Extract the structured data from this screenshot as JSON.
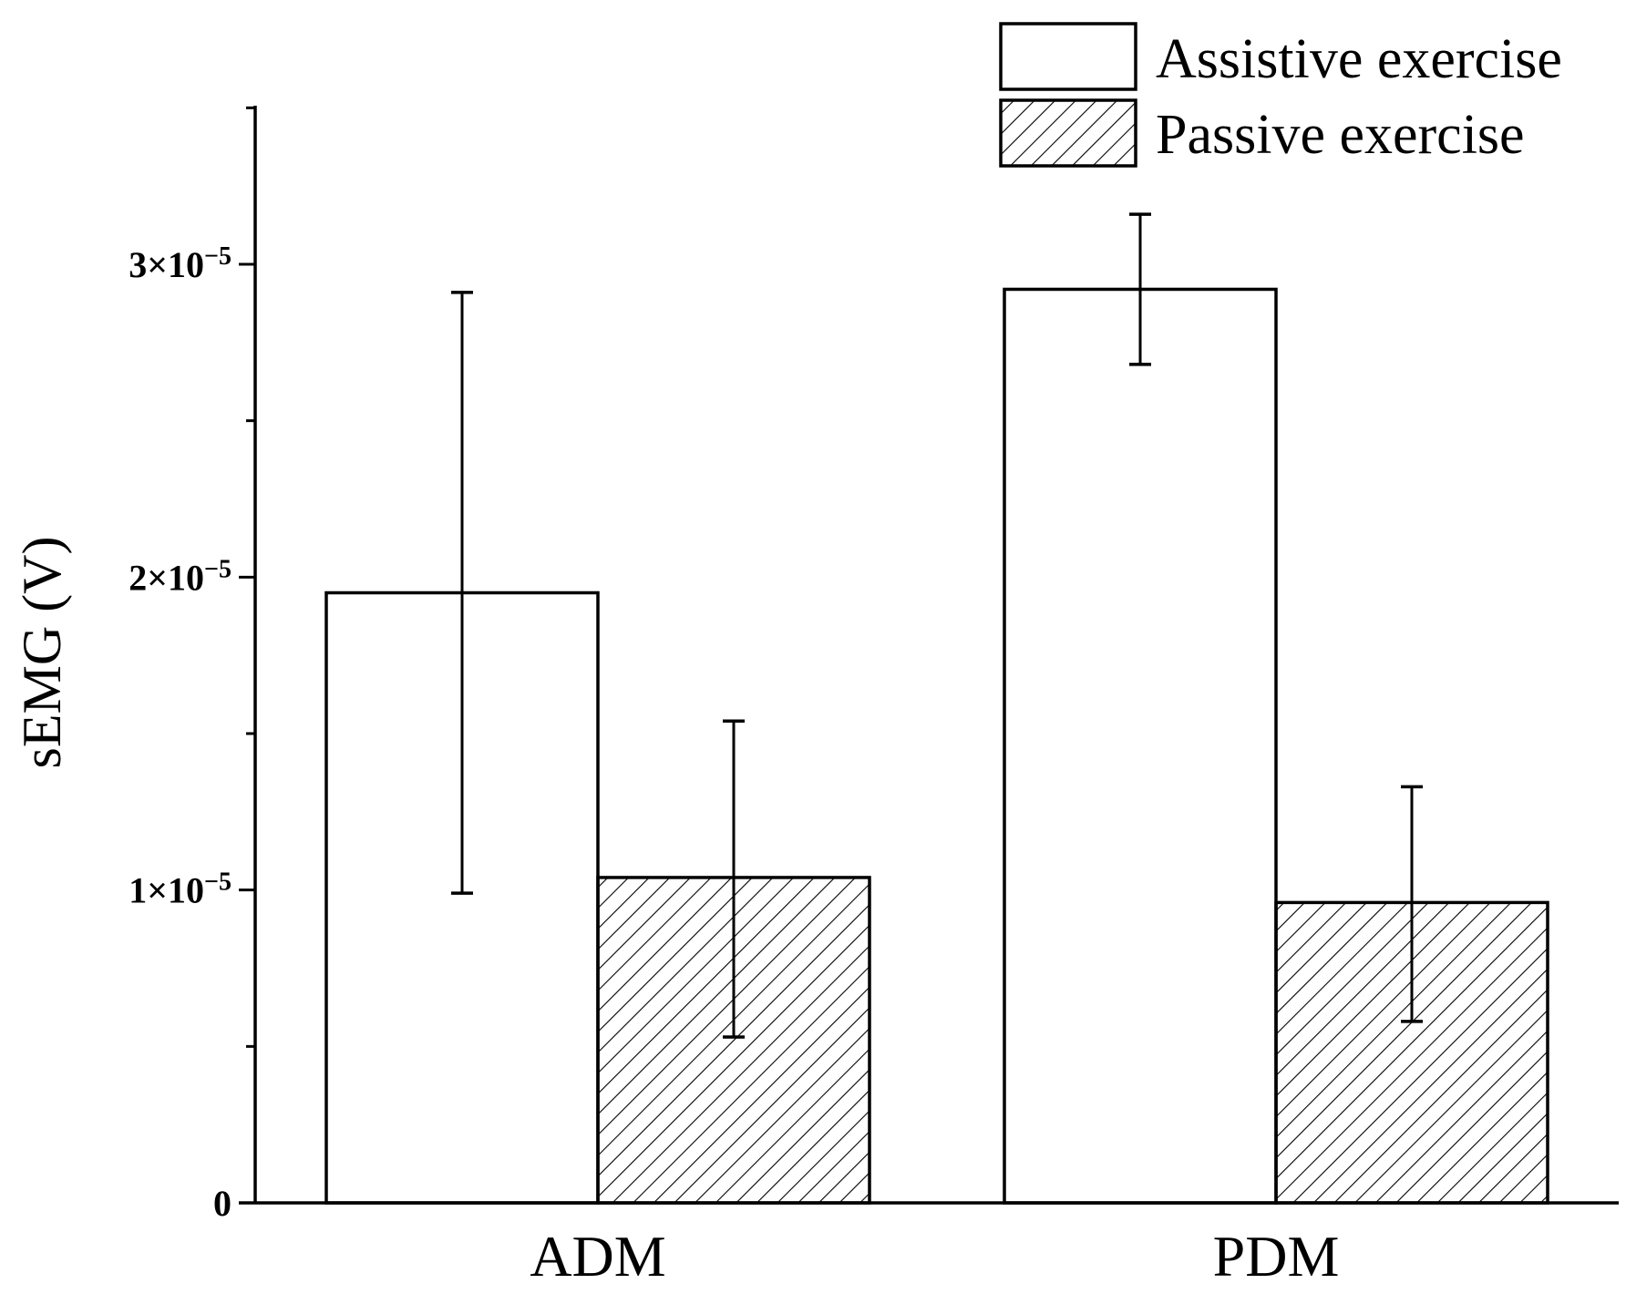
{
  "chart_data": {
    "type": "bar",
    "title": "",
    "xlabel": "",
    "ylabel": "sEMG (V)",
    "categories": [
      "ADM",
      "PDM"
    ],
    "ylim": [
      0,
      3.5e-05
    ],
    "yticks": [
      {
        "value": 0,
        "label": "0",
        "mantissa": "0",
        "base": "",
        "exponent": ""
      },
      {
        "value": 1e-05,
        "label": "1×10⁻⁵",
        "mantissa": "1",
        "base": "×10",
        "exponent": "−5"
      },
      {
        "value": 2e-05,
        "label": "2×10⁻⁵",
        "mantissa": "2",
        "base": "×10",
        "exponent": "−5"
      },
      {
        "value": 3e-05,
        "label": "3×10⁻⁵",
        "mantissa": "3",
        "base": "×10",
        "exponent": "−5"
      }
    ],
    "minor_tick_step": 5e-06,
    "series": [
      {
        "name": "Assistive exercise",
        "pattern": "none",
        "values": [
          1.95e-05,
          2.92e-05
        ],
        "error_low": [
          9.9e-06,
          2.68e-05
        ],
        "error_high": [
          2.91e-05,
          3.16e-05
        ]
      },
      {
        "name": "Passive exercise",
        "pattern": "hatched",
        "values": [
          1.04e-05,
          9.6e-06
        ],
        "error_low": [
          5.3e-06,
          5.8e-06
        ],
        "error_high": [
          1.54e-05,
          1.33e-05
        ]
      }
    ],
    "legend_position": "top-right",
    "grid": false,
    "colors": {
      "bar_fill": "#ffffff",
      "stroke": "#000000",
      "hatch": "#000000"
    }
  }
}
